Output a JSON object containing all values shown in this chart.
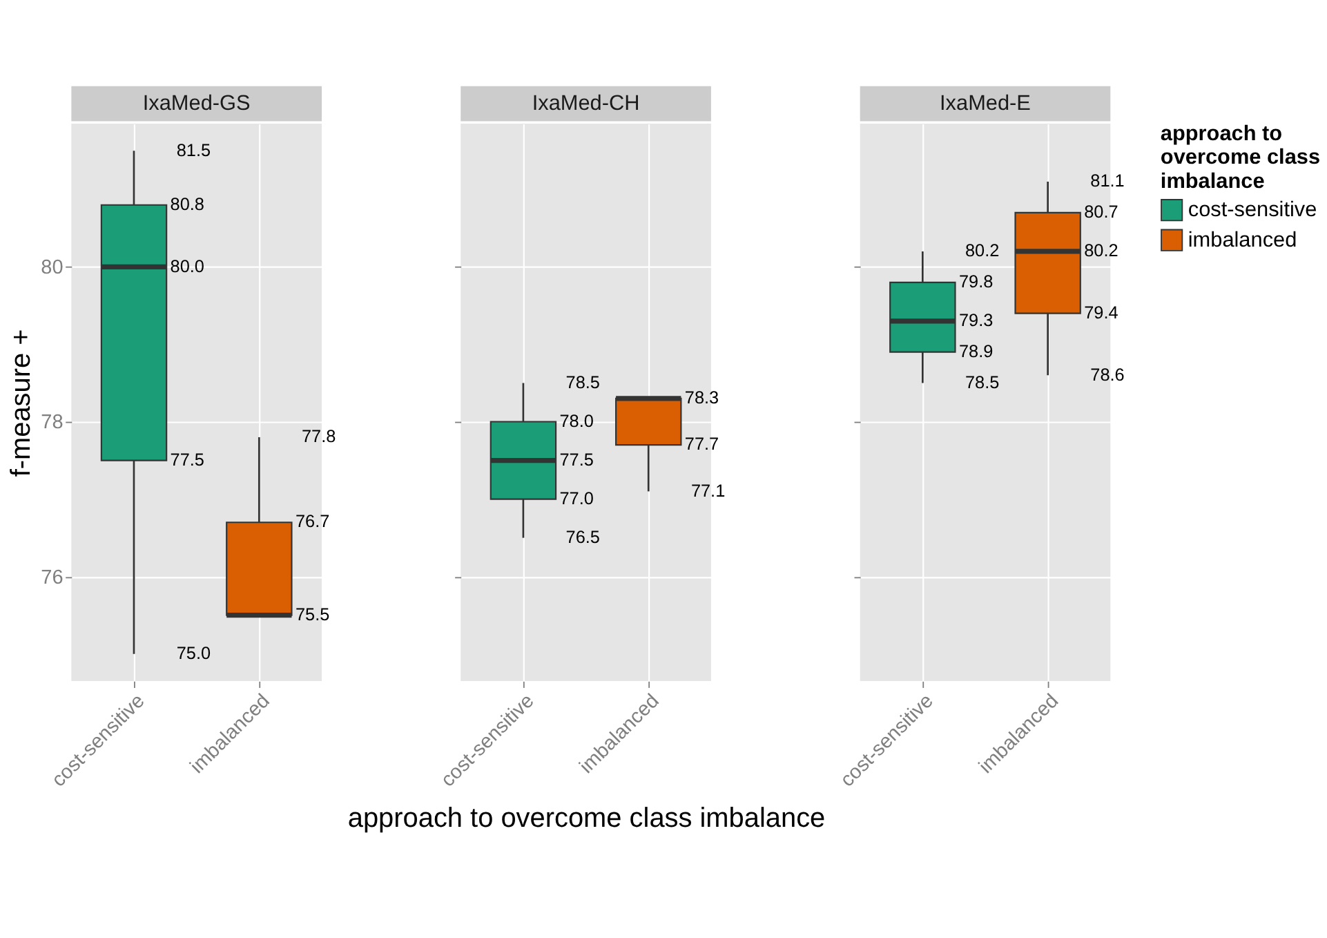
{
  "chart_data": [
    {
      "type": "box",
      "title": "IxaMed-GS",
      "ylabel": "f-measure +",
      "categories": [
        "cost-sensitive",
        "imbalanced"
      ],
      "ylim": [
        74.65,
        81.85
      ],
      "yticks": [
        76,
        78,
        80
      ],
      "grid": true,
      "legend": false,
      "series": [
        {
          "color": "#1b9e77",
          "boxes": [
            {
              "low": 75.0,
              "q1": 77.5,
              "median": 80.0,
              "q3": 80.8,
              "high": 81.5
            },
            null
          ]
        },
        {
          "color": "#d95f02",
          "boxes": [
            null,
            {
              "low": 75.5,
              "q1": 75.5,
              "median": 75.5,
              "q3": 76.7,
              "high": 77.8
            }
          ]
        }
      ],
      "annotations": [
        {
          "text": "75.0",
          "x": "cost-sensitive",
          "y": 75.0
        },
        {
          "text": "77.5",
          "x": "cost-sensitive",
          "y": 77.5
        },
        {
          "text": "80.0",
          "x": "cost-sensitive",
          "y": 80.0
        },
        {
          "text": "80.8",
          "x": "cost-sensitive",
          "y": 80.8
        },
        {
          "text": "81.5",
          "x": "cost-sensitive",
          "y": 81.5
        },
        {
          "text": "75.5",
          "x": "imbalanced",
          "y": 75.5
        },
        {
          "text": "76.7",
          "x": "imbalanced",
          "y": 76.7
        },
        {
          "text": "77.8",
          "x": "imbalanced",
          "y": 77.8
        }
      ]
    },
    {
      "type": "box",
      "title": "IxaMed-CH",
      "xlabel": "approach to overcome class imbalance",
      "categories": [
        "cost-sensitive",
        "imbalanced"
      ],
      "ylim": [
        74.65,
        81.85
      ],
      "yticks": [
        76,
        78,
        80
      ],
      "grid": true,
      "legend": false,
      "tick_labels": "x",
      "series": [
        {
          "color": "#1b9e77",
          "boxes": [
            {
              "low": 76.5,
              "q1": 77.0,
              "median": 77.5,
              "q3": 78.0,
              "high": 78.5
            },
            null
          ]
        },
        {
          "color": "#d95f02",
          "boxes": [
            null,
            {
              "low": 77.1,
              "q1": 77.7,
              "median": 78.3,
              "q3": 78.3,
              "high": 78.3
            }
          ]
        }
      ],
      "annotations": [
        {
          "text": "76.5",
          "x": "cost-sensitive",
          "y": 76.5
        },
        {
          "text": "77.0",
          "x": "cost-sensitive",
          "y": 77.0
        },
        {
          "text": "77.5",
          "x": "cost-sensitive",
          "y": 77.5
        },
        {
          "text": "78.0",
          "x": "cost-sensitive",
          "y": 78.0
        },
        {
          "text": "78.5",
          "x": "cost-sensitive",
          "y": 78.5
        },
        {
          "text": "77.1",
          "x": "imbalanced",
          "y": 77.1
        },
        {
          "text": "77.7",
          "x": "imbalanced",
          "y": 77.7
        },
        {
          "text": "78.3",
          "x": "imbalanced",
          "y": 78.3
        }
      ]
    },
    {
      "type": "box",
      "title": "IxaMed-E",
      "legend_title": "approach to overcome class imbalance",
      "categories": [
        "cost-sensitive",
        "imbalanced"
      ],
      "ylim": [
        74.65,
        81.85
      ],
      "yticks": [
        76,
        78,
        80
      ],
      "grid": true,
      "legend": "right",
      "tick_labels": "x",
      "series": [
        {
          "name": "cost-sensitive",
          "color": "#1b9e77",
          "boxes": [
            {
              "low": 78.5,
              "q1": 78.9,
              "median": 79.3,
              "q3": 79.8,
              "high": 80.2
            },
            null
          ]
        },
        {
          "name": "imbalanced",
          "color": "#d95f02",
          "boxes": [
            null,
            {
              "low": 78.6,
              "q1": 79.4,
              "median": 80.2,
              "q3": 80.7,
              "high": 81.1
            }
          ]
        }
      ],
      "annotations": [
        {
          "text": "78.5",
          "x": "cost-sensitive",
          "y": 78.5
        },
        {
          "text": "78.9",
          "x": "cost-sensitive",
          "y": 78.9
        },
        {
          "text": "79.3",
          "x": "cost-sensitive",
          "y": 79.3
        },
        {
          "text": "79.8",
          "x": "cost-sensitive",
          "y": 79.8
        },
        {
          "text": "80.2",
          "x": "cost-sensitive",
          "y": 80.2
        },
        {
          "text": "78.6",
          "x": "imbalanced",
          "y": 78.6
        },
        {
          "text": "79.4",
          "x": "imbalanced",
          "y": 79.4
        },
        {
          "text": "80.2",
          "x": "imbalanced",
          "y": 80.2
        },
        {
          "text": "80.7",
          "x": "imbalanced",
          "y": 80.7
        },
        {
          "text": "81.1",
          "x": "imbalanced",
          "y": 81.1
        }
      ]
    }
  ]
}
